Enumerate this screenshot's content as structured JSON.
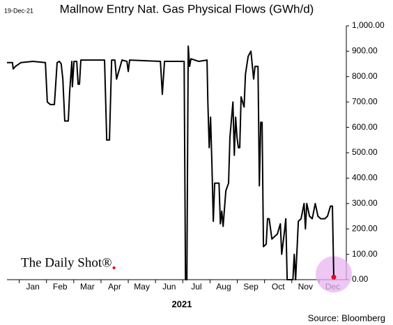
{
  "chart_data": {
    "type": "line",
    "date_stamp": "19-Dec-21",
    "title": "Mallnow Entry Nat. Gas Physical Flows (GWh/d)",
    "x_label": "2021",
    "source": "Source: Bloomberg",
    "logo": "The Daily Shot®",
    "xlim": [
      -0.45,
      12
    ],
    "xticks": [
      {
        "value": 0.5,
        "label": "Jan"
      },
      {
        "value": 1.5,
        "label": "Feb"
      },
      {
        "value": 2.5,
        "label": "Mar"
      },
      {
        "value": 3.5,
        "label": "Apr"
      },
      {
        "value": 4.5,
        "label": "May"
      },
      {
        "value": 5.5,
        "label": "Jun"
      },
      {
        "value": 6.5,
        "label": "Jul"
      },
      {
        "value": 7.5,
        "label": "Aug"
      },
      {
        "value": 8.5,
        "label": "Sep"
      },
      {
        "value": 9.5,
        "label": "Oct"
      },
      {
        "value": 10.5,
        "label": "Nov"
      },
      {
        "value": 11.5,
        "label": "Dec"
      }
    ],
    "ylim": [
      0,
      1000
    ],
    "yticks": [
      {
        "value": 0,
        "label": "0.00"
      },
      {
        "value": 100,
        "label": "100.00"
      },
      {
        "value": 200,
        "label": "200.00"
      },
      {
        "value": 300,
        "label": "300.00"
      },
      {
        "value": 400,
        "label": "400.00"
      },
      {
        "value": 500,
        "label": "500.00"
      },
      {
        "value": 600,
        "label": "600.00"
      },
      {
        "value": 700,
        "label": "700.00"
      },
      {
        "value": 800,
        "label": "800.00"
      },
      {
        "value": 900,
        "label": "900.00"
      },
      {
        "value": 1000,
        "label": "1,000.00"
      }
    ],
    "color": "#000000",
    "highlight_color": "#e8b4f0",
    "marker_color": "#e8002a",
    "x": [
      -0.45,
      -0.25,
      -0.22,
      -0.14,
      0.06,
      0.5,
      0.96,
      1.03,
      1.14,
      1.29,
      1.39,
      1.47,
      1.54,
      1.6,
      1.67,
      1.8,
      1.85,
      1.93,
      1.95,
      2.01,
      2.11,
      2.16,
      2.21,
      2.26,
      3.13,
      3.21,
      3.31,
      3.39,
      3.51,
      3.57,
      3.77,
      3.95,
      4.0,
      4.05,
      5.18,
      5.25,
      5.33,
      6.05,
      6.1,
      6.15,
      6.2,
      6.25,
      6.3,
      6.58,
      6.89,
      6.92,
      6.97,
      7.02,
      7.07,
      7.12,
      7.17,
      7.22,
      7.33,
      7.38,
      7.43,
      7.48,
      7.58,
      7.68,
      7.73,
      7.84,
      7.89,
      7.94,
      7.99,
      8.04,
      8.09,
      8.14,
      8.25,
      8.3,
      8.4,
      8.5,
      8.6,
      8.65,
      8.76,
      8.81,
      8.86,
      8.91,
      8.96,
      9.06,
      9.11,
      9.17,
      9.27,
      9.37,
      9.47,
      9.58,
      9.63,
      9.73,
      9.78,
      9.83,
      9.93,
      10.04,
      10.09,
      10.14,
      10.24,
      10.34,
      10.45,
      10.5,
      10.55,
      10.65,
      10.75,
      10.86,
      10.96,
      11.06,
      11.21,
      11.31,
      11.42,
      11.49,
      11.54
    ],
    "values": [
      855,
      855,
      830,
      840,
      855,
      860,
      855,
      700,
      690,
      690,
      855,
      860,
      850,
      790,
      625,
      625,
      740,
      860,
      760,
      860,
      860,
      770,
      770,
      865,
      865,
      550,
      550,
      865,
      865,
      790,
      865,
      860,
      820,
      865,
      860,
      730,
      860,
      860,
      0,
      0,
      920,
      840,
      870,
      860,
      865,
      700,
      520,
      640,
      450,
      230,
      380,
      380,
      380,
      220,
      270,
      210,
      350,
      380,
      560,
      700,
      490,
      640,
      560,
      520,
      520,
      720,
      680,
      810,
      880,
      900,
      790,
      840,
      840,
      370,
      620,
      620,
      130,
      140,
      240,
      240,
      160,
      170,
      180,
      220,
      100,
      190,
      240,
      0,
      0,
      0,
      100,
      0,
      230,
      240,
      300,
      200,
      300,
      250,
      240,
      300,
      250,
      240,
      240,
      250,
      290,
      290,
      10
    ]
  }
}
